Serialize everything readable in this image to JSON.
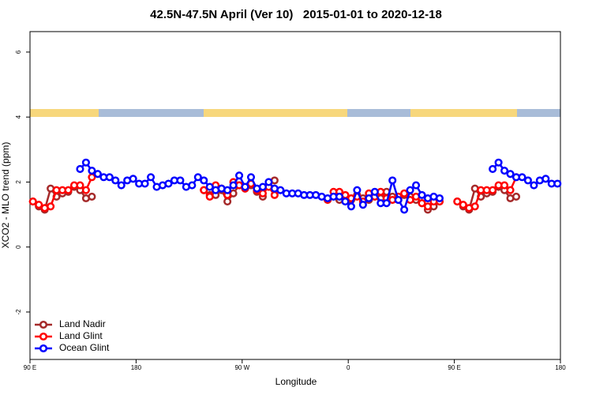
{
  "chart_data": {
    "type": "line",
    "title": "42.5N-47.5N April (Ver 10)   2015-01-01 to 2020-12-18",
    "x_label": "Longitude",
    "y_label": "XCO2 - MLO trend (ppm)",
    "x": [
      92.5,
      97.5,
      102.5,
      107.5,
      112.5,
      117.5,
      122.5,
      127.5,
      132.5,
      137.5,
      142.5,
      147.5,
      152.5,
      157.5,
      162.5,
      167.5,
      172.5,
      177.5,
      182.5,
      187.5,
      192.5,
      197.5,
      202.5,
      207.5,
      212.5,
      217.5,
      222.5,
      227.5,
      232.5,
      237.5,
      242.5,
      247.5,
      252.5,
      257.5,
      262.5,
      267.5,
      272.5,
      277.5,
      282.5,
      287.5,
      292.5,
      297.5,
      302.5,
      307.5,
      312.5,
      317.5,
      322.5,
      327.5,
      332.5,
      337.5,
      342.5,
      347.5,
      352.5,
      357.5,
      362.5,
      367.5,
      372.5,
      377.5,
      382.5,
      387.5,
      392.5,
      397.5,
      402.5,
      407.5,
      412.5,
      417.5,
      422.5,
      427.5,
      432.5,
      437.5,
      442.5,
      447.5,
      452.5,
      457.5,
      462.5,
      467.5,
      472.5,
      477.5,
      482.5,
      487.5,
      492.5,
      497.5,
      502.5,
      507.5,
      512.5,
      517.5,
      522.5,
      527.5,
      532.5,
      537.5
    ],
    "series": [
      {
        "name": "Land Nadir",
        "color": "#a52a2a",
        "values": [
          1.4,
          1.25,
          1.15,
          1.8,
          1.55,
          1.65,
          1.7,
          1.85,
          1.75,
          1.5,
          1.55,
          null,
          null,
          null,
          null,
          null,
          null,
          null,
          null,
          null,
          null,
          null,
          null,
          null,
          null,
          null,
          null,
          null,
          null,
          1.75,
          1.6,
          1.6,
          1.75,
          1.4,
          1.65,
          1.9,
          1.8,
          1.9,
          1.7,
          1.55,
          null,
          2.05,
          null,
          null,
          null,
          null,
          null,
          null,
          null,
          null,
          null,
          null,
          1.45,
          1.55,
          1.45,
          1.6,
          1.5,
          1.45,
          1.65,
          1.5,
          1.7,
          1.55,
          1.45,
          1.6,
          1.55,
          1.45,
          1.35,
          1.15,
          1.25,
          1.4,
          null,
          null,
          1.4,
          1.25,
          1.15,
          1.8,
          1.55,
          1.65,
          1.7,
          1.85,
          1.75,
          1.5,
          1.55,
          null,
          null,
          null,
          null,
          null,
          null,
          null
        ]
      },
      {
        "name": "Land Glint",
        "color": "#ff0000",
        "values": [
          1.4,
          1.3,
          1.2,
          1.25,
          1.75,
          1.75,
          1.75,
          1.9,
          1.9,
          1.75,
          2.15,
          null,
          null,
          null,
          null,
          null,
          null,
          null,
          null,
          null,
          null,
          null,
          null,
          null,
          null,
          null,
          null,
          null,
          null,
          1.75,
          1.55,
          1.9,
          1.8,
          1.6,
          2.0,
          1.9,
          1.8,
          1.95,
          1.75,
          1.65,
          1.85,
          1.6,
          null,
          null,
          null,
          null,
          null,
          null,
          null,
          null,
          1.45,
          1.7,
          1.7,
          1.6,
          1.5,
          1.55,
          1.4,
          1.65,
          1.55,
          1.7,
          1.5,
          1.45,
          1.55,
          1.65,
          1.45,
          1.55,
          1.35,
          1.25,
          1.4,
          1.4,
          null,
          null,
          1.4,
          1.3,
          1.2,
          1.25,
          1.75,
          1.75,
          1.75,
          1.9,
          1.9,
          1.75,
          2.15,
          null,
          null,
          null,
          null,
          null,
          null,
          null
        ]
      },
      {
        "name": "Ocean Glint",
        "color": "#0000ff",
        "values": [
          null,
          null,
          null,
          null,
          null,
          null,
          null,
          null,
          2.4,
          2.6,
          2.35,
          2.25,
          2.15,
          2.15,
          2.05,
          1.9,
          2.05,
          2.1,
          1.95,
          1.95,
          2.15,
          1.85,
          1.9,
          1.95,
          2.05,
          2.05,
          1.85,
          1.9,
          2.15,
          2.05,
          1.85,
          1.75,
          1.8,
          1.75,
          1.9,
          2.2,
          1.85,
          2.15,
          1.8,
          1.85,
          2.0,
          1.8,
          1.75,
          1.65,
          1.65,
          1.65,
          1.6,
          1.6,
          1.6,
          1.55,
          1.5,
          1.55,
          1.55,
          1.4,
          1.25,
          1.75,
          1.3,
          1.5,
          1.7,
          1.35,
          1.35,
          2.05,
          1.45,
          1.15,
          1.75,
          1.9,
          1.6,
          1.5,
          1.55,
          1.5,
          null,
          null,
          null,
          null,
          null,
          null,
          null,
          null,
          2.4,
          2.6,
          2.35,
          2.25,
          2.15,
          2.15,
          2.05,
          1.9,
          2.05,
          2.1,
          1.95,
          1.95
        ]
      }
    ],
    "xlim": [
      90,
      540
    ],
    "xticks": [
      {
        "value": 90,
        "label": "90 E"
      },
      180,
      {
        "value": 270,
        "label": "90 W"
      },
      {
        "value": 360,
        "label": "0"
      },
      {
        "value": 450,
        "label": "90 E"
      },
      {
        "value": 540,
        "label": "180"
      }
    ],
    "ylim": [
      -3.46,
      6.63
    ],
    "yticks": [
      -2,
      0,
      2,
      4,
      6
    ],
    "legend": "bottom-left",
    "grid": false
  }
}
